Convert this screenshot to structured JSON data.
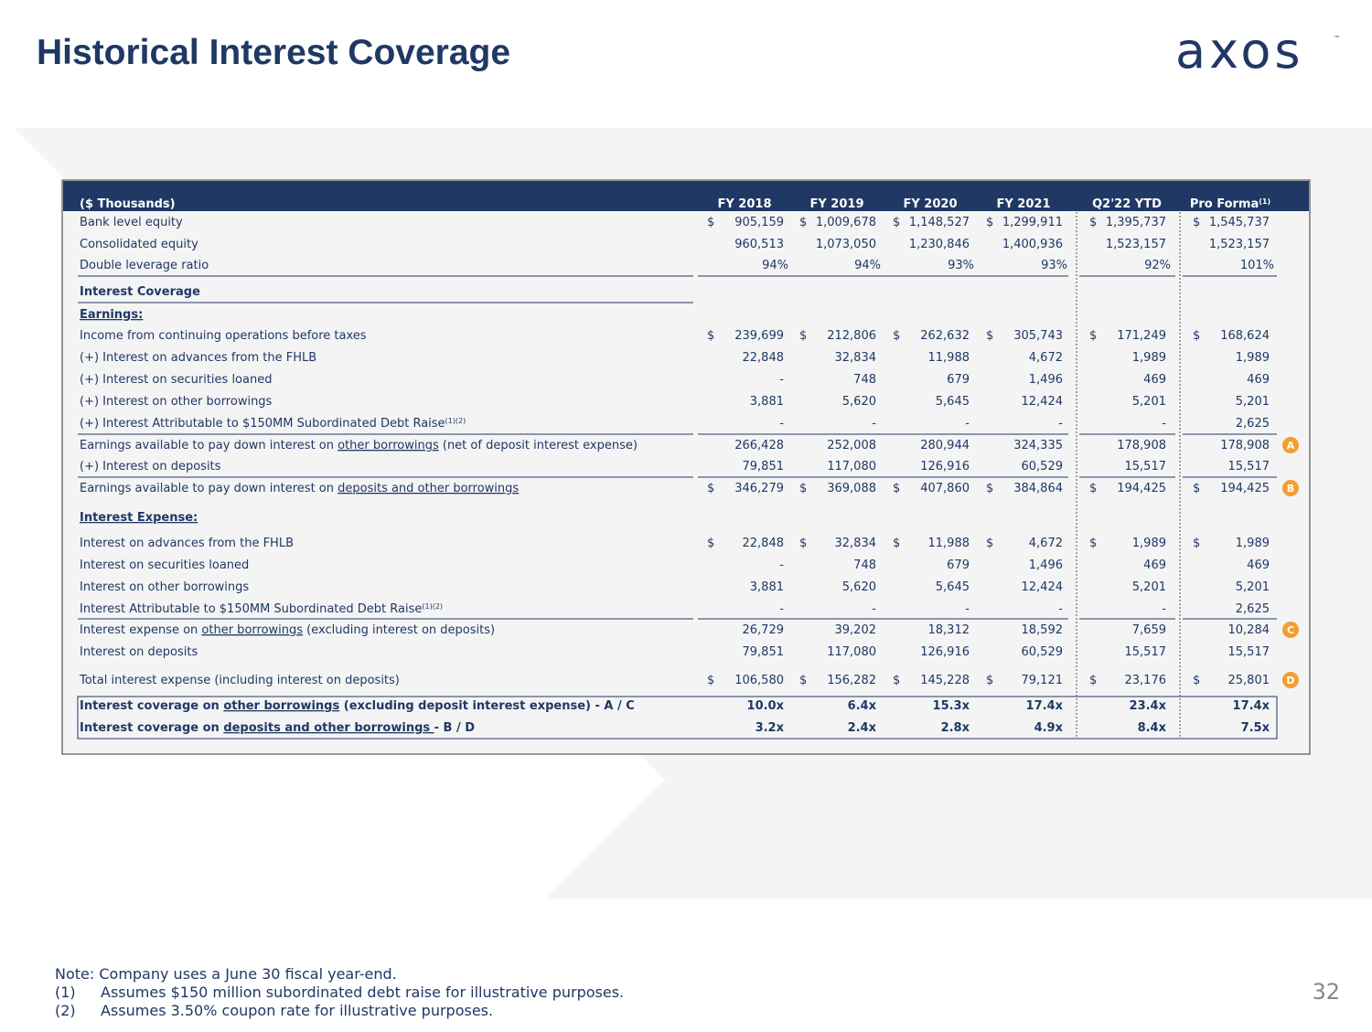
{
  "header": {
    "title": "Historical Interest Coverage",
    "logo": "axos",
    "tm": "™"
  },
  "table": {
    "columns": [
      "($ Thousands)",
      "FY 2018",
      "FY 2019",
      "FY 2020",
      "FY 2021",
      "Q2'22 YTD",
      "Pro Forma"
    ],
    "last_column_sup": "(1)",
    "rows": [
      {
        "label": [
          "Bank level equity"
        ],
        "currency": "$",
        "cells": [
          "905,159",
          "1,009,678",
          "1,148,527",
          "1,299,911",
          "1,395,737",
          "1,545,737"
        ]
      },
      {
        "label": [
          "Consolidated equity"
        ],
        "cells": [
          "960,513",
          "1,073,050",
          "1,230,846",
          "1,400,936",
          "1,523,157",
          "1,523,157"
        ]
      },
      {
        "label": [
          "Double leverage ratio"
        ],
        "cells": [
          "94%",
          "94%",
          "93%",
          "93%",
          "92%",
          "101%"
        ]
      },
      {
        "label": [
          "Interest Coverage"
        ],
        "bold": true
      },
      {
        "label": [
          "Earnings:"
        ],
        "bold": true,
        "underline": 0
      },
      {
        "label": [
          "Income from continuing operations before taxes"
        ],
        "currency": "$",
        "cells": [
          "239,699",
          "212,806",
          "262,632",
          "305,743",
          "171,249",
          "168,624"
        ]
      },
      {
        "label": [
          "(+) Interest on advances from the FHLB"
        ],
        "cells": [
          "22,848",
          "32,834",
          "11,988",
          "4,672",
          "1,989",
          "1,989"
        ]
      },
      {
        "label": [
          "(+) Interest on securities loaned"
        ],
        "cells": [
          "-",
          "748",
          "679",
          "1,496",
          "469",
          "469"
        ]
      },
      {
        "label": [
          "(+) Interest on other borrowings"
        ],
        "cells": [
          "3,881",
          "5,620",
          "5,645",
          "12,424",
          "5,201",
          "5,201"
        ]
      },
      {
        "label": [
          "(+) Interest Attributable to $150MM Subordinated Debt Raise"
        ],
        "sup": "(1)(2)",
        "cells": [
          "-",
          "-",
          "-",
          "-",
          "-",
          "2,625"
        ]
      },
      {
        "label": [
          "Earnings available to pay down interest on ",
          "other borrowings",
          " (net of deposit interest expense)"
        ],
        "underline": 1,
        "cells": [
          "266,428",
          "252,008",
          "280,944",
          "324,335",
          "178,908",
          "178,908"
        ],
        "badge": "A"
      },
      {
        "label": [
          "(+) Interest on deposits"
        ],
        "cells": [
          "79,851",
          "117,080",
          "126,916",
          "60,529",
          "15,517",
          "15,517"
        ]
      },
      {
        "label": [
          "Earnings available to pay down interest on ",
          "deposits and other borrowings"
        ],
        "underline": 1,
        "currency": "$",
        "cells": [
          "346,279",
          "369,088",
          "407,860",
          "384,864",
          "194,425",
          "194,425"
        ],
        "badge": "B"
      },
      {
        "label": [
          "Interest Expense:"
        ],
        "bold": true,
        "underline": 0
      },
      {
        "label": [
          "Interest on advances from the FHLB"
        ],
        "currency": "$",
        "cells": [
          "22,848",
          "32,834",
          "11,988",
          "4,672",
          "1,989",
          "1,989"
        ]
      },
      {
        "label": [
          "Interest on securities loaned"
        ],
        "cells": [
          "-",
          "748",
          "679",
          "1,496",
          "469",
          "469"
        ]
      },
      {
        "label": [
          "Interest on other borrowings"
        ],
        "cells": [
          "3,881",
          "5,620",
          "5,645",
          "12,424",
          "5,201",
          "5,201"
        ]
      },
      {
        "label": [
          "Interest Attributable to $150MM Subordinated Debt Raise"
        ],
        "sup": "(1)(2)",
        "cells": [
          "-",
          "-",
          "-",
          "-",
          "-",
          "2,625"
        ]
      },
      {
        "label": [
          "Interest expense on ",
          "other borrowings",
          " (excluding interest on deposits)"
        ],
        "underline": 1,
        "cells": [
          "26,729",
          "39,202",
          "18,312",
          "18,592",
          "7,659",
          "10,284"
        ],
        "badge": "C"
      },
      {
        "label": [
          "Interest on deposits"
        ],
        "cells": [
          "79,851",
          "117,080",
          "126,916",
          "60,529",
          "15,517",
          "15,517"
        ]
      },
      {
        "label": [
          "Total interest expense (including interest on deposits)"
        ],
        "currency": "$",
        "cells": [
          "106,580",
          "156,282",
          "145,228",
          "79,121",
          "23,176",
          "25,801"
        ],
        "badge": "D"
      },
      {
        "label": [
          "Interest coverage on ",
          "other borrowings",
          " (excluding deposit interest expense) - A / C"
        ],
        "underline": 1,
        "bold": true,
        "cells": [
          "10.0x",
          "6.4x",
          "15.3x",
          "17.4x",
          "23.4x",
          "17.4x"
        ]
      },
      {
        "label": [
          "Interest coverage on ",
          "deposits and other borrowings ",
          " - B / D"
        ],
        "underline": 1,
        "bold": true,
        "cells": [
          "3.2x",
          "2.4x",
          "2.8x",
          "4.9x",
          "8.4x",
          "7.5x"
        ]
      }
    ]
  },
  "notes": {
    "note": "Note: Company uses a June 30 fiscal year-end.",
    "items": [
      {
        "num": "(1)",
        "text": "Assumes $150 million subordinated debt raise for illustrative purposes."
      },
      {
        "num": "(2)",
        "text": "Assumes 3.50% coupon rate for illustrative purposes."
      }
    ]
  },
  "page_number": "32"
}
